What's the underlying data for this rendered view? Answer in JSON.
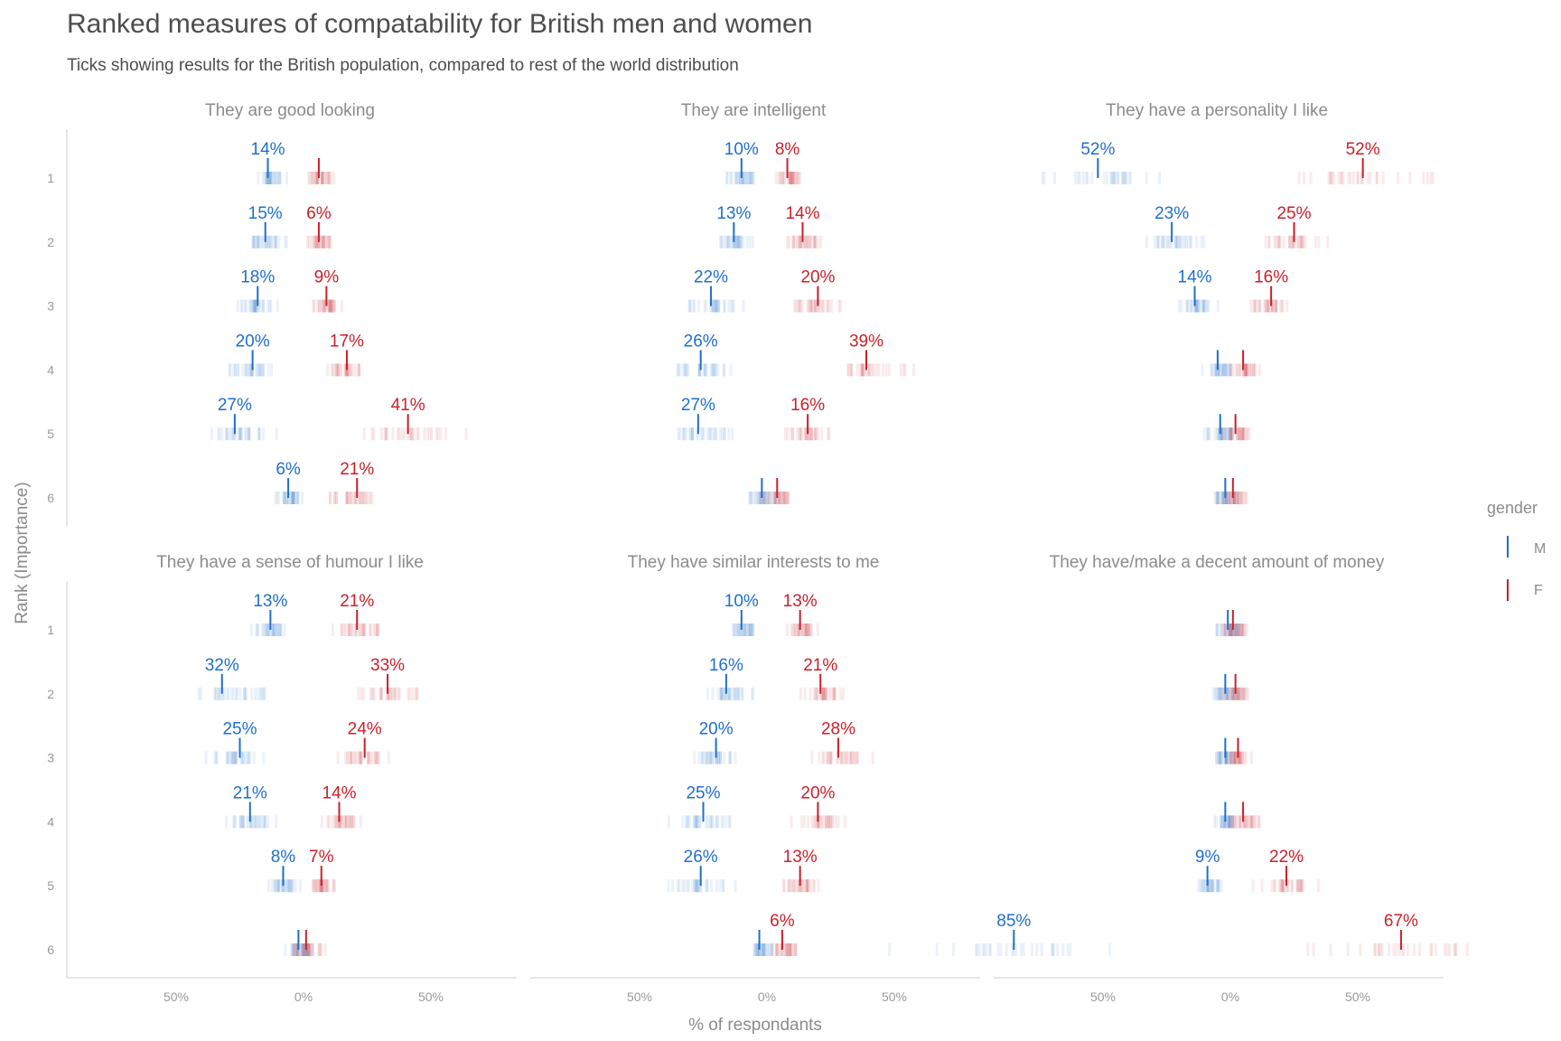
{
  "title": "Ranked measures of compatability for British men and women",
  "subtitle": "Ticks showing results for the British population, compared to rest of the world distribution",
  "colors": {
    "M": "#1f6fcc",
    "F": "#cc1f2a",
    "axis": "#cccccc"
  },
  "chart_data": {
    "type": "scatter",
    "xlabel": "% of respondants",
    "ylabel": "Rank (Importance)",
    "xlim": [
      -100,
      100
    ],
    "x_tick_labels": [
      "50%",
      "0%",
      "50%"
    ],
    "x_tick_values": [
      -50,
      0,
      50
    ],
    "ranks": [
      "1",
      "2",
      "3",
      "4",
      "5",
      "6"
    ],
    "legend": {
      "title": "gender",
      "entries": [
        "M",
        "F"
      ],
      "position": "right"
    },
    "facets": [
      {
        "title": "They are good looking",
        "M": [
          -14,
          -15,
          -18,
          -20,
          -27,
          -6
        ],
        "F": [
          6,
          6,
          9,
          17,
          41,
          21
        ],
        "M_label": [
          "14%",
          "15%",
          "18%",
          "20%",
          "27%",
          "6%"
        ],
        "F_label": [
          "",
          "6%",
          "9%",
          "17%",
          "41%",
          "21%"
        ]
      },
      {
        "title": "They are intelligent",
        "M": [
          -10,
          -13,
          -22,
          -26,
          -27,
          -2
        ],
        "F": [
          8,
          14,
          20,
          39,
          16,
          4
        ],
        "M_label": [
          "10%",
          "13%",
          "22%",
          "26%",
          "27%",
          ""
        ],
        "F_label": [
          "8%",
          "14%",
          "20%",
          "39%",
          "16%",
          ""
        ]
      },
      {
        "title": "They have a personality I like",
        "M": [
          -52,
          -23,
          -14,
          -5,
          -4,
          -2
        ],
        "F": [
          52,
          25,
          16,
          5,
          2,
          1
        ],
        "M_label": [
          "52%",
          "23%",
          "14%",
          "",
          "",
          ""
        ],
        "F_label": [
          "52%",
          "25%",
          "16%",
          "",
          "",
          ""
        ]
      },
      {
        "title": "They have a sense of humour I like",
        "M": [
          -13,
          -32,
          -25,
          -21,
          -8,
          -2
        ],
        "F": [
          21,
          33,
          24,
          14,
          7,
          1
        ],
        "M_label": [
          "13%",
          "32%",
          "25%",
          "21%",
          "8%",
          ""
        ],
        "F_label": [
          "21%",
          "33%",
          "24%",
          "14%",
          "7%",
          ""
        ]
      },
      {
        "title": "They have similar interests to me",
        "M": [
          -10,
          -16,
          -20,
          -25,
          -26,
          -3
        ],
        "F": [
          13,
          21,
          28,
          20,
          13,
          6
        ],
        "M_label": [
          "10%",
          "16%",
          "20%",
          "25%",
          "26%",
          ""
        ],
        "F_label": [
          "13%",
          "21%",
          "28%",
          "20%",
          "13%",
          "6%"
        ]
      },
      {
        "title": "They have/make a decent amount of money",
        "M": [
          -1,
          -2,
          -2,
          -2,
          -9,
          -85
        ],
        "F": [
          1,
          2,
          3,
          5,
          22,
          67
        ],
        "M_label": [
          "",
          "",
          "",
          "",
          "9%",
          "85%"
        ],
        "F_label": [
          "",
          "",
          "",
          "",
          "22%",
          "67%"
        ]
      }
    ]
  }
}
